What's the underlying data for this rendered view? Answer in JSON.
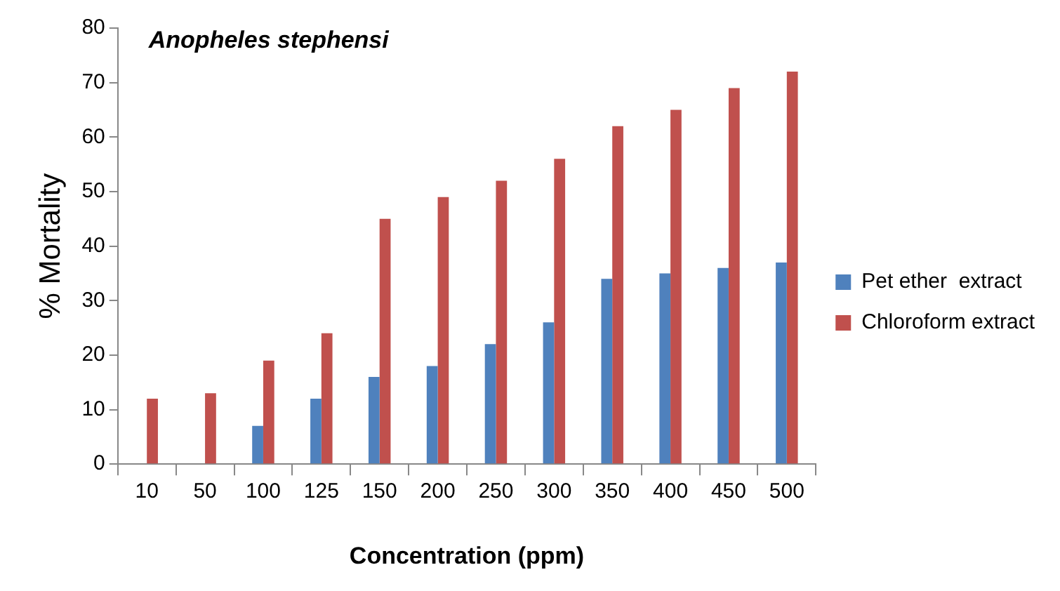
{
  "chart_data": {
    "type": "bar",
    "title": "Anopheles stephensi",
    "xlabel": "Concentration (ppm)",
    "ylabel": "% Mortality",
    "categories": [
      "10",
      "50",
      "100",
      "125",
      "150",
      "200",
      "250",
      "300",
      "350",
      "400",
      "450",
      "500"
    ],
    "series": [
      {
        "name": "Pet ether  extract",
        "color": "#4f81bd",
        "values": [
          null,
          null,
          7,
          12,
          16,
          18,
          22,
          26,
          34,
          35,
          36,
          37
        ]
      },
      {
        "name": "Chloroform extract",
        "color": "#c0504d",
        "values": [
          12,
          13,
          19,
          24,
          45,
          49,
          52,
          56,
          62,
          65,
          69,
          72
        ]
      }
    ],
    "ylim": [
      0,
      80
    ],
    "yticks": [
      0,
      10,
      20,
      30,
      40,
      50,
      60,
      70,
      80
    ],
    "grid": false,
    "legend": "right"
  }
}
